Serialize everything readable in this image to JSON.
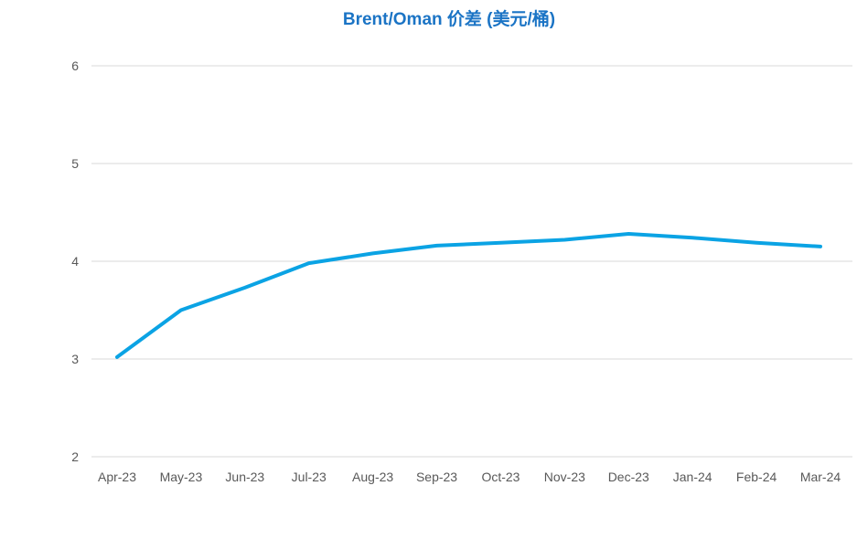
{
  "title": "Brent/Oman 价差 (美元/桶)",
  "colors": {
    "title": "#1B74C5",
    "line": "#0BA3E4",
    "grid": "#D9D9D9",
    "axis_text": "#595959",
    "background": "#FFFFFF"
  },
  "chart_data": {
    "type": "line",
    "title": "Brent/Oman 价差 (美元/桶)",
    "categories": [
      "Apr-23",
      "May-23",
      "Jun-23",
      "Jul-23",
      "Aug-23",
      "Sep-23",
      "Oct-23",
      "Nov-23",
      "Dec-23",
      "Jan-24",
      "Feb-24",
      "Mar-24"
    ],
    "series": [
      {
        "name": "Brent/Oman 价差",
        "values": [
          3.02,
          3.5,
          3.73,
          3.98,
          4.08,
          4.16,
          4.19,
          4.22,
          4.28,
          4.24,
          4.19,
          4.15
        ]
      }
    ],
    "xlabel": "",
    "ylabel": "",
    "ylim": [
      2,
      6
    ],
    "yticks": [
      2,
      3,
      4,
      5,
      6
    ],
    "grid": true,
    "legend_position": "none"
  }
}
